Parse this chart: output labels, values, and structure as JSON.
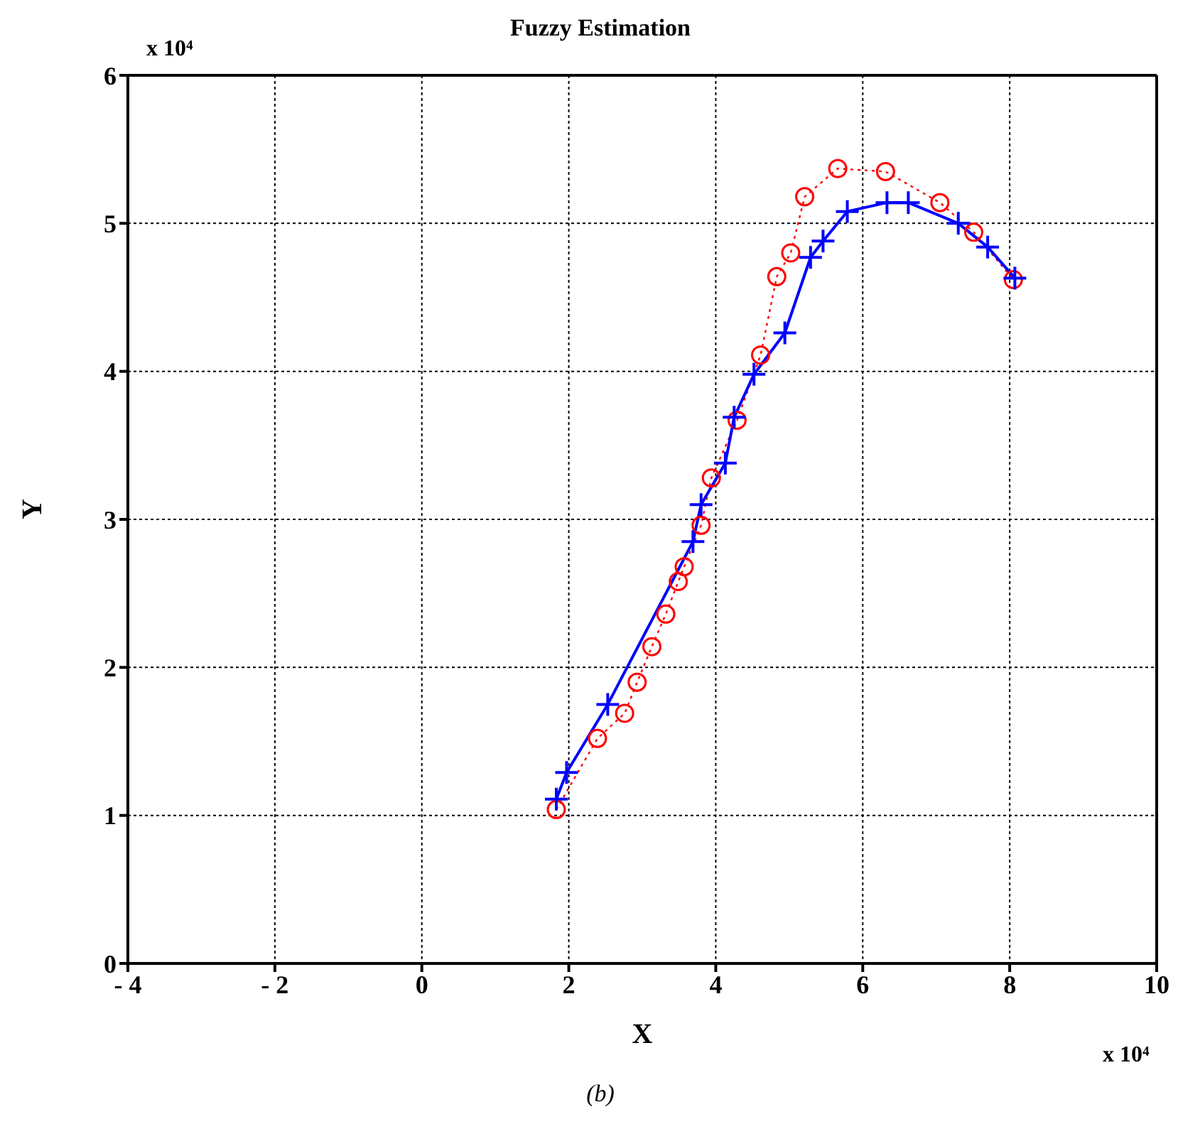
{
  "chart_data": {
    "type": "line",
    "title": "Fuzzy Estimation",
    "xlabel": "X",
    "ylabel": "Y",
    "annotations": [
      "x 10⁴",
      "x 10⁴",
      "(b)"
    ],
    "xlim": [
      -4,
      10
    ],
    "xticks": [
      {
        "value": -4,
        "label": "- 4"
      },
      {
        "value": -2,
        "label": "- 2"
      },
      0,
      2,
      4,
      6,
      8,
      10
    ],
    "ylim": [
      0,
      6
    ],
    "yticks": [
      0,
      1,
      2,
      3,
      4,
      5,
      6
    ],
    "grid": true,
    "series": [
      {
        "color": "#ff0000",
        "marker": "circle",
        "line_style": "dotted",
        "x": [
          1.83,
          2.39,
          2.76,
          2.93,
          3.13,
          3.32,
          3.49,
          3.57,
          3.8,
          3.94,
          4.29,
          4.61,
          4.83,
          5.02,
          5.21,
          5.66,
          6.31,
          7.05,
          7.51,
          8.05
        ],
        "values": [
          1.04,
          1.52,
          1.69,
          1.9,
          2.14,
          2.36,
          2.58,
          2.68,
          2.96,
          3.28,
          3.67,
          4.11,
          4.64,
          4.8,
          5.18,
          5.37,
          5.35,
          5.14,
          4.94,
          4.62
        ]
      },
      {
        "color": "#0000ff",
        "marker": "cross",
        "line_style": "solid",
        "x": [
          1.83,
          1.97,
          2.53,
          3.69,
          3.8,
          4.13,
          4.25,
          4.52,
          4.94,
          5.29,
          5.46,
          5.79,
          6.33,
          6.62,
          7.3,
          7.7,
          8.07
        ],
        "values": [
          1.11,
          1.29,
          1.75,
          2.85,
          3.1,
          3.38,
          3.69,
          3.98,
          4.26,
          4.77,
          4.88,
          5.08,
          5.14,
          5.14,
          5,
          4.84,
          4.63
        ]
      }
    ]
  }
}
